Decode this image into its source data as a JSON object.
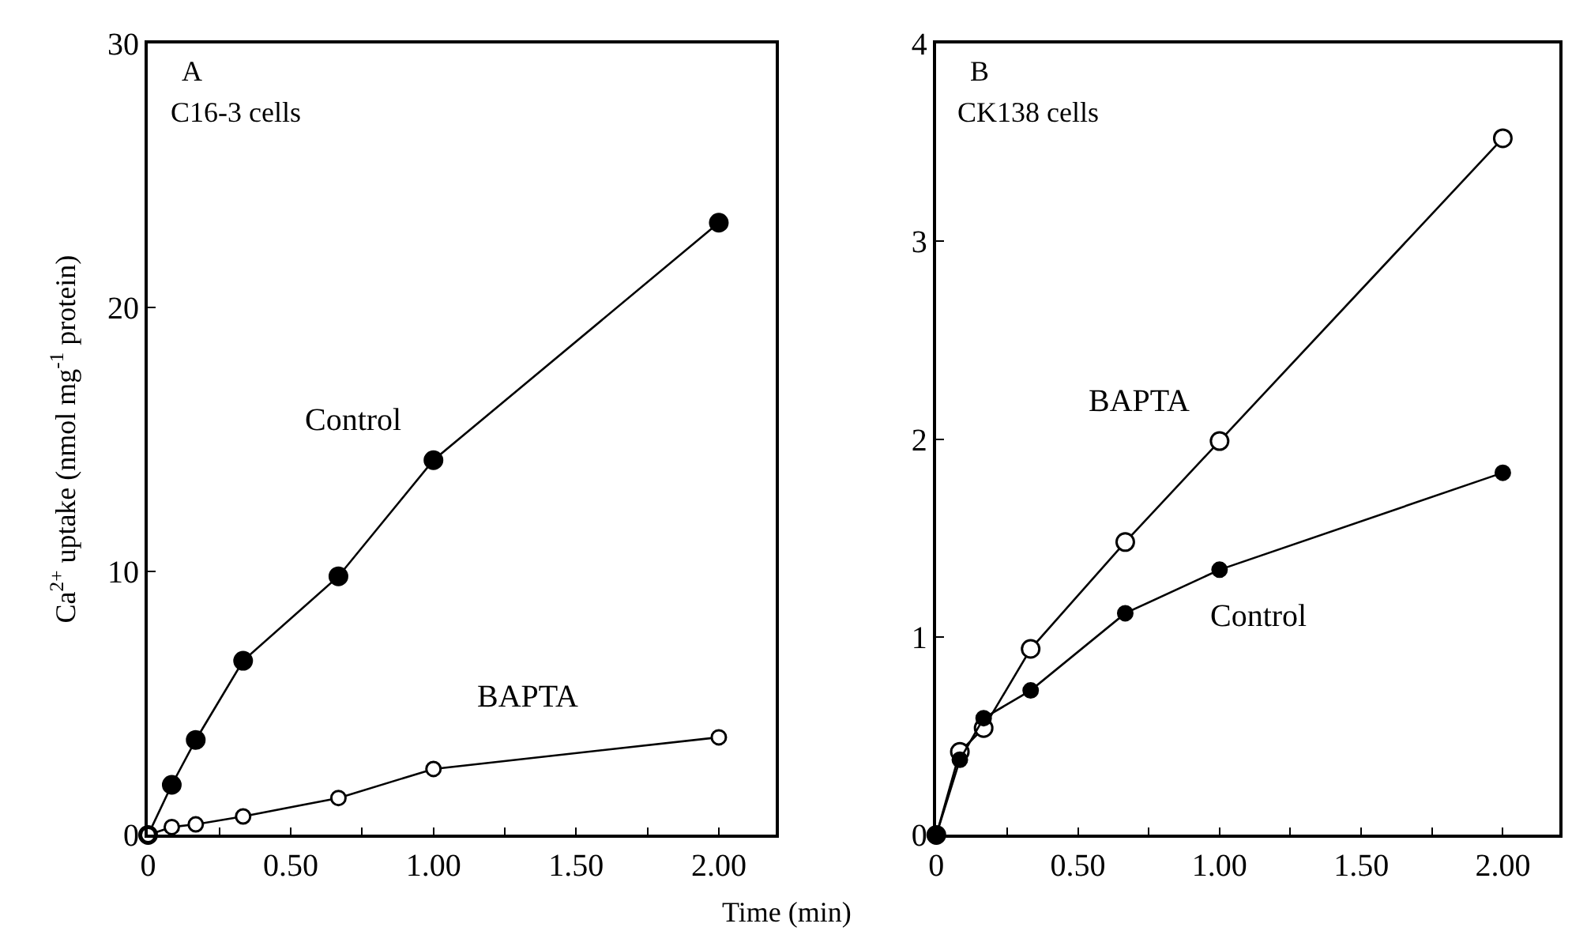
{
  "chart_data": [
    {
      "type": "line",
      "title": "A",
      "subtitle": "C16-3 cells",
      "xlabel": "Time (min)",
      "ylabel": "Ca$^{2+}$ uptake (nmol mg$^{-1}$ protein)",
      "x": [
        0,
        0.083,
        0.167,
        0.333,
        0.667,
        1.0,
        2.0
      ],
      "series": [
        {
          "name": "Control",
          "color": "#000000",
          "values": [
            0,
            1.9,
            3.6,
            6.6,
            9.8,
            14.2,
            23.2
          ]
        },
        {
          "name": "BAPTA",
          "color": "#ffffff",
          "values": [
            0,
            0.3,
            0.4,
            0.7,
            1.4,
            2.5,
            3.7
          ]
        }
      ],
      "xlim": [
        0,
        2.2
      ],
      "ylim": [
        0,
        30
      ],
      "xticks": [
        {
          "value": 0,
          "label": "0"
        },
        {
          "value": 0.25,
          "label": null
        },
        {
          "value": 0.5,
          "label": "0.50"
        },
        {
          "value": 0.75,
          "label": null
        },
        {
          "value": 1.0,
          "label": "1.00"
        },
        {
          "value": 1.25,
          "label": null
        },
        {
          "value": 1.5,
          "label": "1.50"
        },
        {
          "value": 1.75,
          "label": null
        },
        {
          "value": 2.0,
          "label": "2.00"
        }
      ],
      "yticks": [
        0,
        10,
        20,
        30
      ],
      "marker": "circle",
      "line_style": "solid",
      "legend": false
    },
    {
      "type": "line",
      "title": "B",
      "subtitle": "CK138 cells",
      "x": [
        0,
        0.083,
        0.167,
        0.333,
        0.667,
        1.0,
        2.0
      ],
      "series": [
        {
          "name": "BAPTA",
          "color": "#ffffff",
          "values": [
            0,
            0.42,
            0.54,
            0.94,
            1.48,
            1.99,
            3.52
          ]
        },
        {
          "name": "Control",
          "color": "#000000",
          "values": [
            0,
            0.38,
            0.59,
            0.73,
            1.12,
            1.34,
            1.83
          ]
        }
      ],
      "xlim": [
        0,
        2.2
      ],
      "ylim": [
        0,
        4
      ],
      "xticks": [
        {
          "value": 0,
          "label": "0"
        },
        {
          "value": 0.25,
          "label": null
        },
        {
          "value": 0.5,
          "label": "0.50"
        },
        {
          "value": 0.75,
          "label": null
        },
        {
          "value": 1.0,
          "label": "1.00"
        },
        {
          "value": 1.25,
          "label": null
        },
        {
          "value": 1.5,
          "label": "1.50"
        },
        {
          "value": 1.75,
          "label": null
        },
        {
          "value": 2.0,
          "label": "2.00"
        }
      ],
      "yticks": [
        0,
        1,
        2,
        3,
        4
      ],
      "marker": "circle",
      "line_style": "solid",
      "legend": false
    }
  ]
}
